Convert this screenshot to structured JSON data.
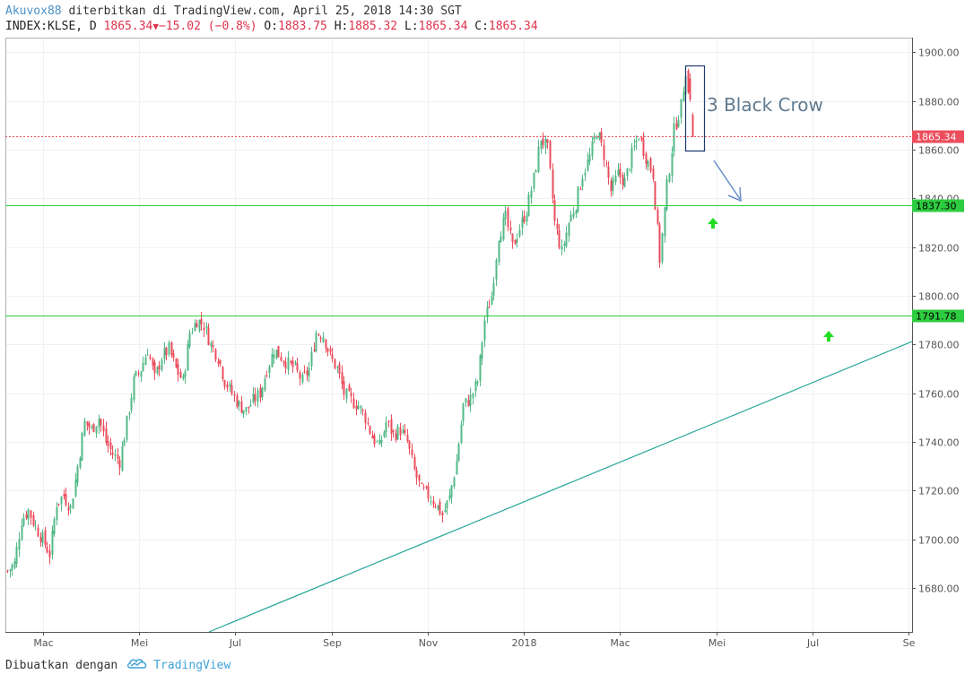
{
  "header": {
    "author": "Akuvox88",
    "published": " diterbitkan di TradingView.com, April 25, 2018 14:30 SGT",
    "symbol": "INDEX:KLSE, D",
    "last": "1865.34",
    "change": "−15.02 (−0.8%)",
    "o_label": "O:",
    "o": "1883.75",
    "h_label": "H:",
    "h": "1885.32",
    "l_label": "L:",
    "l": "1865.34",
    "c_label": "C:",
    "c": "1865.34"
  },
  "footer": {
    "made_with": "Dibuatkan dengan",
    "brand": "TradingView"
  },
  "colors": {
    "up": "#53b987",
    "down": "#eb4d5c",
    "support": "#2ecc40",
    "trendline": "#26a69a",
    "box": "#1f3a73",
    "arrow": "#6a8fc7",
    "last_price": "#eb4d5c"
  },
  "chart_data": {
    "type": "candlestick",
    "ylim": [
      1662,
      1906
    ],
    "y_ticks": [
      1680,
      1700,
      1720,
      1740,
      1760,
      1780,
      1800,
      1820,
      1840,
      1860,
      1880,
      1900
    ],
    "x_tick_labels": [
      "Mac",
      "Mei",
      "Jul",
      "Sep",
      "Nov",
      "2018",
      "Mac",
      "Mei",
      "Jul",
      "Se"
    ],
    "last_price": "1865.34",
    "support_levels": [
      "1837.30",
      "1791.78"
    ],
    "annotation": "3 Black Crow",
    "close_trace": [
      [
        0,
        1687
      ],
      [
        3,
        1690
      ],
      [
        6,
        1708
      ],
      [
        9,
        1712
      ],
      [
        12,
        1705
      ],
      [
        15,
        1700
      ],
      [
        18,
        1694
      ],
      [
        21,
        1715
      ],
      [
        24,
        1718
      ],
      [
        27,
        1713
      ],
      [
        30,
        1730
      ],
      [
        33,
        1748
      ],
      [
        36,
        1745
      ],
      [
        39,
        1750
      ],
      [
        42,
        1740
      ],
      [
        45,
        1735
      ],
      [
        48,
        1732
      ],
      [
        51,
        1748
      ],
      [
        54,
        1765
      ],
      [
        57,
        1770
      ],
      [
        60,
        1778
      ],
      [
        63,
        1766
      ],
      [
        66,
        1775
      ],
      [
        69,
        1778
      ],
      [
        72,
        1770
      ],
      [
        75,
        1765
      ],
      [
        78,
        1785
      ],
      [
        81,
        1790
      ],
      [
        84,
        1788
      ],
      [
        87,
        1780
      ],
      [
        90,
        1775
      ],
      [
        93,
        1765
      ],
      [
        96,
        1760
      ],
      [
        99,
        1755
      ],
      [
        102,
        1753
      ],
      [
        105,
        1757
      ],
      [
        108,
        1760
      ],
      [
        111,
        1770
      ],
      [
        114,
        1778
      ],
      [
        117,
        1775
      ],
      [
        120,
        1772
      ],
      [
        123,
        1770
      ],
      [
        126,
        1765
      ],
      [
        129,
        1770
      ],
      [
        132,
        1785
      ],
      [
        135,
        1784
      ],
      [
        138,
        1775
      ],
      [
        141,
        1770
      ],
      [
        144,
        1760
      ],
      [
        147,
        1757
      ],
      [
        150,
        1755
      ],
      [
        153,
        1750
      ],
      [
        156,
        1742
      ],
      [
        159,
        1738
      ],
      [
        162,
        1748
      ],
      [
        165,
        1743
      ],
      [
        168,
        1745
      ],
      [
        171,
        1740
      ],
      [
        174,
        1728
      ],
      [
        177,
        1720
      ],
      [
        180,
        1718
      ],
      [
        183,
        1715
      ],
      [
        186,
        1710
      ],
      [
        189,
        1717
      ],
      [
        192,
        1732
      ],
      [
        195,
        1755
      ],
      [
        198,
        1758
      ],
      [
        201,
        1765
      ],
      [
        204,
        1790
      ],
      [
        207,
        1800
      ],
      [
        210,
        1825
      ],
      [
        213,
        1832
      ],
      [
        216,
        1820
      ],
      [
        219,
        1828
      ],
      [
        222,
        1835
      ],
      [
        225,
        1848
      ],
      [
        228,
        1865
      ],
      [
        231,
        1860
      ],
      [
        234,
        1830
      ],
      [
        237,
        1818
      ],
      [
        240,
        1830
      ],
      [
        243,
        1838
      ],
      [
        246,
        1850
      ],
      [
        249,
        1857
      ],
      [
        252,
        1868
      ],
      [
        255,
        1858
      ],
      [
        258,
        1843
      ],
      [
        261,
        1850
      ],
      [
        264,
        1847
      ],
      [
        267,
        1858
      ],
      [
        270,
        1866
      ],
      [
        273,
        1857
      ],
      [
        276,
        1850
      ],
      [
        279,
        1815
      ],
      [
        282,
        1845
      ],
      [
        285,
        1868
      ],
      [
        288,
        1878
      ],
      [
        290,
        1893
      ],
      [
        291,
        1883
      ],
      [
        292,
        1878
      ],
      [
        293,
        1865.34
      ]
    ]
  }
}
